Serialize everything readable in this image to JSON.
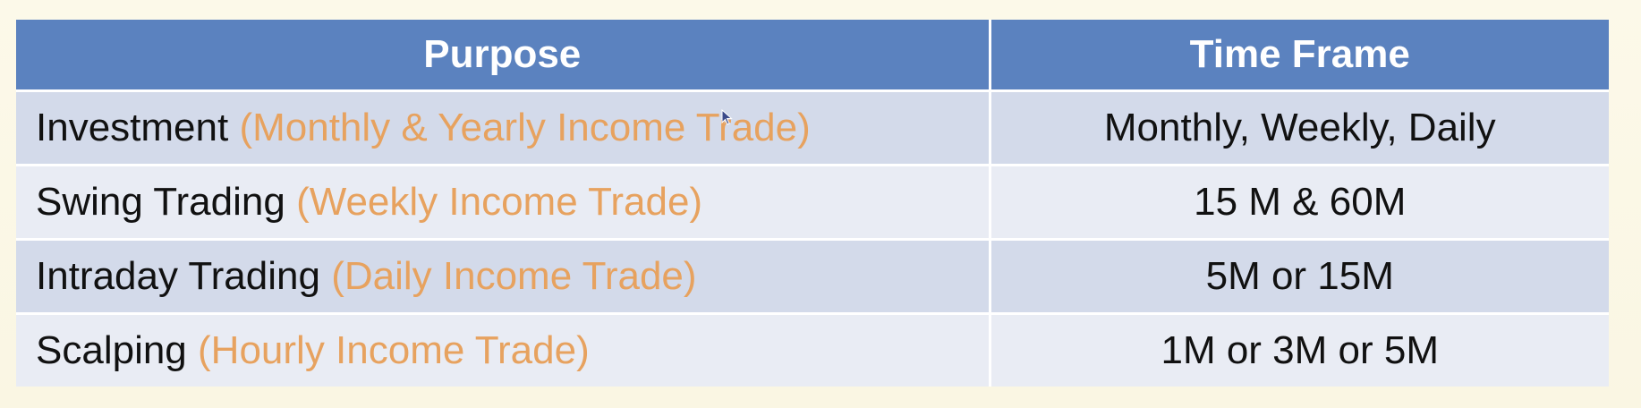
{
  "table": {
    "headers": {
      "purpose": "Purpose",
      "time_frame": "Time Frame"
    },
    "rows": [
      {
        "purpose": "Investment",
        "note": "(Monthly & Yearly Income Trade)",
        "time_frame": "Monthly, Weekly, Daily"
      },
      {
        "purpose": "Swing Trading",
        "note": "(Weekly Income Trade)",
        "time_frame": "15 M & 60M"
      },
      {
        "purpose": "Intraday Trading",
        "note": "(Daily Income Trade)",
        "time_frame": "5M or 15M"
      },
      {
        "purpose": "Scalping",
        "note": "(Hourly Income Trade)",
        "time_frame": "1M or 3M or 5M"
      }
    ]
  },
  "colors": {
    "header_bg": "#5b82bf",
    "header_text": "#ffffff",
    "row_odd_bg": "#d3daea",
    "row_even_bg": "#e9ecf4",
    "note_text": "#e7a25f",
    "body_text": "#111111",
    "slide_bg": "#fbf7e6"
  },
  "icons": {
    "cursor": "mouse-pointer-icon"
  }
}
